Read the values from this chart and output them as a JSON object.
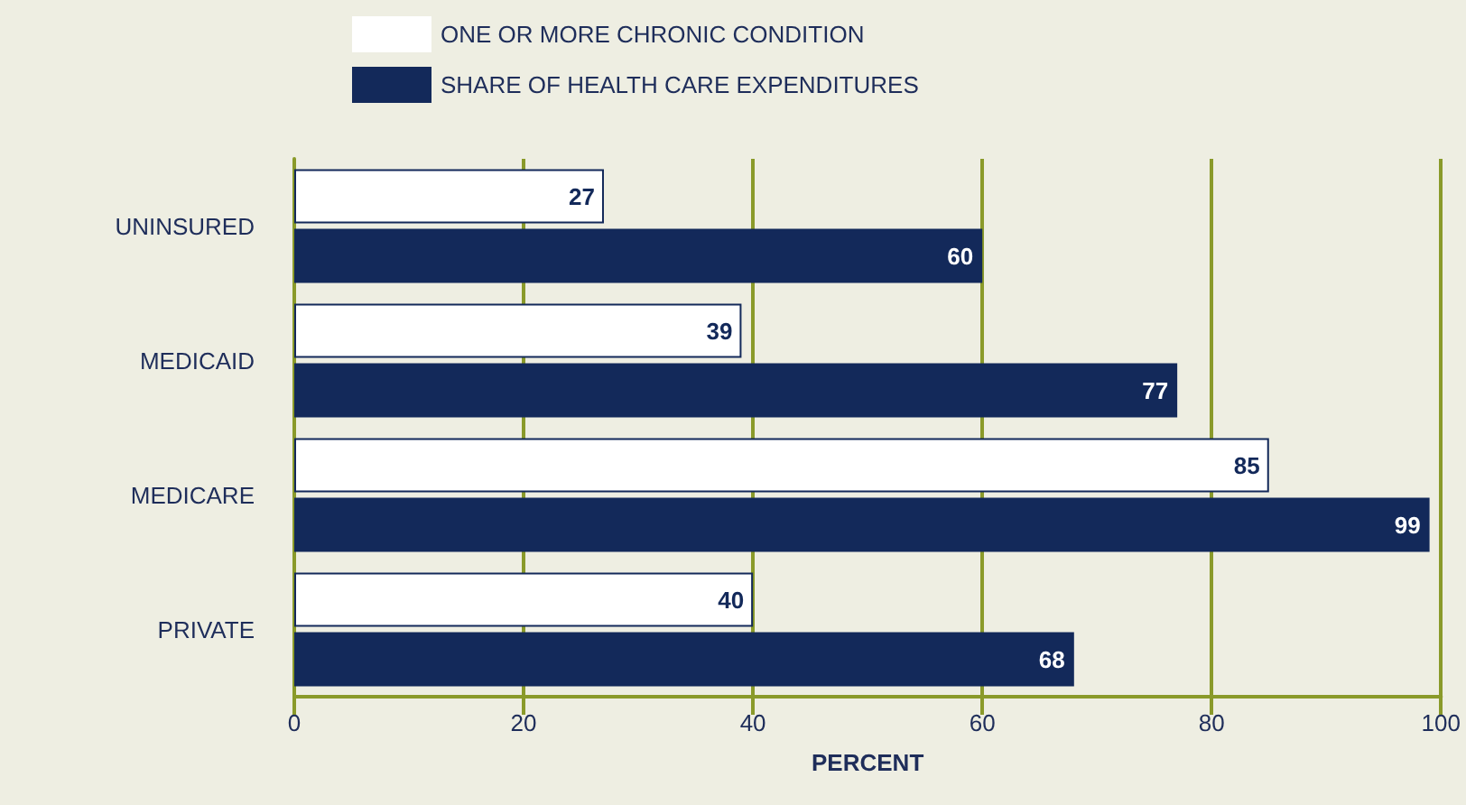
{
  "chart_data": {
    "type": "bar",
    "orientation": "horizontal",
    "xlabel": "PERCENT",
    "categories": [
      "UNINSURED",
      "MEDICAID",
      "MEDICARE",
      "PRIVATE"
    ],
    "series": [
      {
        "name": "ONE OR MORE CHRONIC CONDITION",
        "color": "#ffffff",
        "values": [
          27,
          39,
          85,
          40
        ]
      },
      {
        "name": "SHARE OF HEALTH CARE EXPENDITURES",
        "color": "#13295a",
        "values": [
          60,
          77,
          99,
          68
        ]
      }
    ],
    "xlim": [
      0,
      100
    ],
    "xticks": [
      0,
      20,
      40,
      60,
      80,
      100
    ],
    "grid": "x",
    "legend": "top",
    "data_labels": true
  }
}
